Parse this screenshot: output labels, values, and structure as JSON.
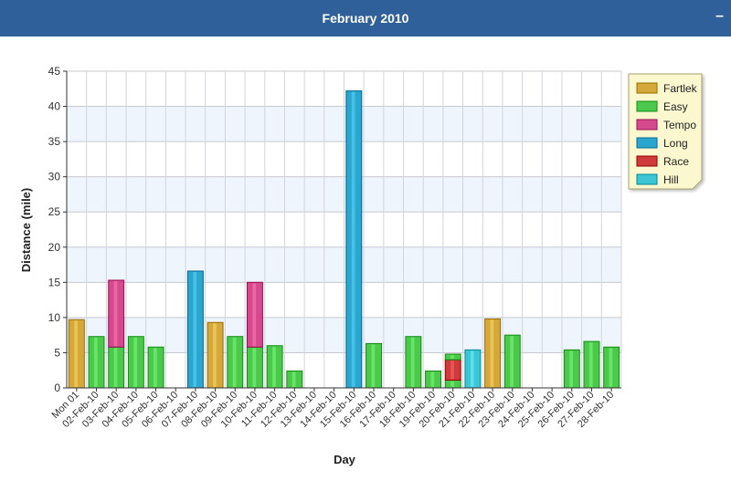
{
  "header": {
    "title": "February 2010",
    "collapse_label": "–"
  },
  "colors": {
    "Fartlek": "#d4a83a",
    "Easy": "#4cc94c",
    "Tempo": "#d44a8c",
    "Long": "#2ba6cf",
    "Race": "#cf3a3a",
    "Hill": "#3cc6d4"
  },
  "chart_data": {
    "type": "bar",
    "stacked": true,
    "xlabel": "Day",
    "ylabel": "Distance (mile)",
    "ylim": [
      0,
      45
    ],
    "yticks": [
      0,
      5,
      10,
      15,
      20,
      25,
      30,
      35,
      40,
      45
    ],
    "grid": true,
    "legend_position": "top-right",
    "categories": [
      "Mon 01",
      "02-Feb-10",
      "03-Feb-10",
      "04-Feb-10",
      "05-Feb-10",
      "06-Feb-10",
      "07-Feb-10",
      "08-Feb-10",
      "09-Feb-10",
      "10-Feb-10",
      "11-Feb-10",
      "12-Feb-10",
      "13-Feb-10",
      "14-Feb-10",
      "15-Feb-10",
      "16-Feb-10",
      "17-Feb-10",
      "18-Feb-10",
      "19-Feb-10",
      "20-Feb-10",
      "21-Feb-10",
      "22-Feb-10",
      "23-Feb-10",
      "24-Feb-10",
      "25-Feb-10",
      "26-Feb-10",
      "27-Feb-10",
      "28-Feb-10"
    ],
    "series": [
      {
        "name": "Fartlek",
        "values": [
          9.7,
          0,
          0,
          0,
          0,
          0,
          0,
          9.3,
          0,
          0,
          0,
          0,
          0,
          0,
          0,
          0,
          0,
          0,
          0,
          0,
          0,
          9.8,
          0,
          0,
          0,
          0,
          0,
          0
        ]
      },
      {
        "name": "Easy",
        "values": [
          0,
          7.3,
          5.8,
          7.3,
          5.8,
          0,
          0,
          0,
          7.3,
          5.8,
          6.0,
          2.4,
          0,
          0,
          0,
          6.3,
          0,
          7.3,
          2.4,
          1.1,
          0,
          0,
          7.5,
          0,
          0,
          5.4,
          6.6,
          5.8
        ]
      },
      {
        "name": "Tempo",
        "values": [
          0,
          0,
          9.5,
          0,
          0,
          0,
          0,
          0,
          0,
          9.2,
          0,
          0,
          0,
          0,
          0,
          0,
          0,
          0,
          0,
          0,
          0,
          0,
          0,
          0,
          0,
          0,
          0,
          0
        ]
      },
      {
        "name": "Long",
        "values": [
          0,
          0,
          0,
          0,
          0,
          0,
          16.6,
          0,
          0,
          0,
          0,
          0,
          0,
          0,
          42.2,
          0,
          0,
          0,
          0,
          0,
          0,
          0,
          0,
          0,
          0,
          0,
          0,
          0
        ]
      },
      {
        "name": "Race",
        "values": [
          0,
          0,
          0,
          0,
          0,
          0,
          0,
          0,
          0,
          0,
          0,
          0,
          0,
          0,
          0,
          0,
          0,
          0,
          0,
          2.9,
          0,
          0,
          0,
          0,
          0,
          0,
          0,
          0
        ]
      },
      {
        "name": "Hill",
        "values": [
          0,
          0,
          0,
          0,
          0,
          0,
          0,
          0,
          0,
          0,
          0,
          0,
          0,
          0,
          0,
          0,
          0,
          0,
          0,
          0,
          5.4,
          0,
          0,
          0,
          0,
          0,
          0,
          0
        ]
      }
    ],
    "extra_segments": [
      {
        "category": "20-Feb-10",
        "series": "Easy",
        "value": 0.8
      }
    ]
  }
}
